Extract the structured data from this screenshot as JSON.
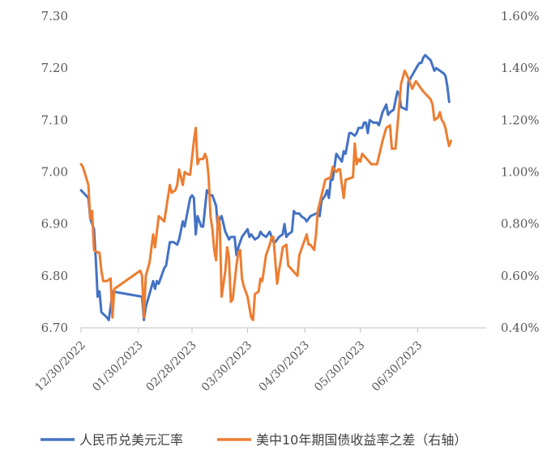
{
  "chart_data": {
    "type": "line",
    "title": "",
    "xlabel": "",
    "ylabel_left": "",
    "ylabel_right": "",
    "x_ticks": [
      "12/30/2022",
      "01/30/2023",
      "02/28/2023",
      "03/30/2023",
      "04/30/2023",
      "05/30/2023",
      "06/30/2023"
    ],
    "x_range": [
      0,
      219
    ],
    "x_tick_positions": [
      0,
      31,
      60,
      90,
      121,
      151,
      182
    ],
    "y_left": {
      "range": [
        6.7,
        7.3
      ],
      "ticks": [
        "6.70",
        "6.80",
        "6.90",
        "7.00",
        "7.10",
        "7.20",
        "7.30"
      ],
      "tick_values": [
        6.7,
        6.8,
        6.9,
        7.0,
        7.1,
        7.2,
        7.3
      ]
    },
    "y_right": {
      "range": [
        0.4,
        1.6
      ],
      "ticks": [
        "0.40%",
        "0.60%",
        "0.80%",
        "1.00%",
        "1.20%",
        "1.40%",
        "1.60%"
      ],
      "tick_values": [
        0.4,
        0.6,
        0.8,
        1.0,
        1.2,
        1.4,
        1.6
      ]
    },
    "legend_position": "bottom",
    "series": [
      {
        "name": "人民币兑美元汇率",
        "axis": "left",
        "color": "#4472C4",
        "points": [
          [
            0,
            6.965
          ],
          [
            4,
            6.95
          ],
          [
            5,
            6.91
          ],
          [
            7,
            6.89
          ],
          [
            8,
            6.83
          ],
          [
            9,
            6.76
          ],
          [
            10,
            6.77
          ],
          [
            11,
            6.73
          ],
          [
            14,
            6.72
          ],
          [
            15,
            6.715
          ],
          [
            16,
            6.74
          ],
          [
            17,
            6.77
          ],
          [
            33,
            6.76
          ],
          [
            34,
            6.715
          ],
          [
            35,
            6.74
          ],
          [
            39,
            6.79
          ],
          [
            40,
            6.775
          ],
          [
            41,
            6.79
          ],
          [
            42,
            6.785
          ],
          [
            45,
            6.815
          ],
          [
            46,
            6.82
          ],
          [
            48,
            6.865
          ],
          [
            50,
            6.865
          ],
          [
            52,
            6.86
          ],
          [
            53,
            6.87
          ],
          [
            55,
            6.905
          ],
          [
            56,
            6.895
          ],
          [
            59,
            6.95
          ],
          [
            60,
            6.955
          ],
          [
            61,
            6.95
          ],
          [
            62,
            6.88
          ],
          [
            63,
            6.915
          ],
          [
            65,
            6.895
          ],
          [
            66,
            6.895
          ],
          [
            68,
            6.965
          ],
          [
            70,
            6.955
          ],
          [
            71,
            6.955
          ],
          [
            73,
            6.935
          ],
          [
            74,
            6.89
          ],
          [
            75,
            6.91
          ],
          [
            76,
            6.915
          ],
          [
            78,
            6.885
          ],
          [
            80,
            6.87
          ],
          [
            81,
            6.875
          ],
          [
            83,
            6.875
          ],
          [
            84,
            6.84
          ],
          [
            85,
            6.855
          ],
          [
            87,
            6.875
          ],
          [
            90,
            6.89
          ],
          [
            91,
            6.875
          ],
          [
            92,
            6.88
          ],
          [
            94,
            6.87
          ],
          [
            96,
            6.875
          ],
          [
            97,
            6.885
          ],
          [
            98,
            6.88
          ],
          [
            100,
            6.875
          ],
          [
            101,
            6.88
          ],
          [
            102,
            6.885
          ],
          [
            104,
            6.865
          ],
          [
            105,
            6.865
          ],
          [
            107,
            6.875
          ],
          [
            109,
            6.88
          ],
          [
            110,
            6.9
          ],
          [
            111,
            6.875
          ],
          [
            112,
            6.88
          ],
          [
            114,
            6.885
          ],
          [
            115,
            6.925
          ],
          [
            116,
            6.92
          ],
          [
            118,
            6.92
          ],
          [
            119,
            6.915
          ],
          [
            121,
            6.91
          ],
          [
            122,
            6.905
          ],
          [
            124,
            6.915
          ],
          [
            127,
            6.92
          ],
          [
            128,
            6.92
          ],
          [
            129,
            6.915
          ],
          [
            130,
            6.945
          ],
          [
            132,
            6.955
          ],
          [
            133,
            6.965
          ],
          [
            134,
            6.95
          ],
          [
            135,
            6.985
          ],
          [
            136,
            6.985
          ],
          [
            138,
            7.035
          ],
          [
            141,
            7.02
          ],
          [
            142,
            7.04
          ],
          [
            143,
            7.035
          ],
          [
            145,
            7.075
          ],
          [
            146,
            7.075
          ],
          [
            148,
            7.07
          ],
          [
            149,
            7.075
          ],
          [
            150,
            7.085
          ],
          [
            151,
            7.085
          ],
          [
            152,
            7.085
          ],
          [
            153,
            7.095
          ],
          [
            154,
            7.095
          ],
          [
            155,
            7.075
          ],
          [
            156,
            7.1
          ],
          [
            158,
            7.095
          ],
          [
            160,
            7.095
          ],
          [
            161,
            7.09
          ],
          [
            163,
            7.115
          ],
          [
            165,
            7.13
          ],
          [
            166,
            7.11
          ],
          [
            167,
            7.115
          ],
          [
            169,
            7.12
          ],
          [
            171,
            7.155
          ],
          [
            172,
            7.15
          ],
          [
            173,
            7.125
          ],
          [
            176,
            7.12
          ],
          [
            177,
            7.175
          ],
          [
            178,
            7.18
          ],
          [
            182,
            7.205
          ],
          [
            183,
            7.21
          ],
          [
            184,
            7.21
          ],
          [
            185,
            7.22
          ],
          [
            186,
            7.225
          ],
          [
            189,
            7.215
          ],
          [
            190,
            7.205
          ],
          [
            191,
            7.195
          ],
          [
            192,
            7.2
          ],
          [
            194,
            7.195
          ],
          [
            196,
            7.19
          ],
          [
            197,
            7.185
          ],
          [
            198,
            7.165
          ],
          [
            199,
            7.135
          ]
        ]
      },
      {
        "name": "美中10年期国债收益率之差（右轴）",
        "axis": "right",
        "color": "#ED7D31",
        "points": [
          [
            0,
            1.03
          ],
          [
            1,
            1.02
          ],
          [
            4,
            0.95
          ],
          [
            5,
            0.82
          ],
          [
            6,
            0.85
          ],
          [
            7,
            0.7
          ],
          [
            9,
            0.69
          ],
          [
            10,
            0.69
          ],
          [
            11,
            0.62
          ],
          [
            12,
            0.58
          ],
          [
            14,
            0.58
          ],
          [
            16,
            0.59
          ],
          [
            17,
            0.44
          ],
          [
            18,
            0.55
          ],
          [
            32,
            0.62
          ],
          [
            33,
            0.6
          ],
          [
            34,
            0.44
          ],
          [
            35,
            0.6
          ],
          [
            37,
            0.65
          ],
          [
            39,
            0.76
          ],
          [
            40,
            0.71
          ],
          [
            42,
            0.83
          ],
          [
            45,
            0.81
          ],
          [
            48,
            0.95
          ],
          [
            49,
            0.92
          ],
          [
            51,
            0.93
          ],
          [
            52,
            0.95
          ],
          [
            53,
            1.01
          ],
          [
            55,
            0.95
          ],
          [
            56,
            1.0
          ],
          [
            58,
            0.99
          ],
          [
            59,
            0.99
          ],
          [
            61,
            1.12
          ],
          [
            62,
            1.17
          ],
          [
            63,
            1.03
          ],
          [
            64,
            1.05
          ],
          [
            66,
            1.05
          ],
          [
            67,
            1.07
          ],
          [
            68,
            1.05
          ],
          [
            69,
            0.98
          ],
          [
            70,
            0.83
          ],
          [
            71,
            0.78
          ],
          [
            72,
            0.7
          ],
          [
            73,
            0.66
          ],
          [
            74,
            0.83
          ],
          [
            75,
            0.8
          ],
          [
            76,
            0.52
          ],
          [
            77,
            0.57
          ],
          [
            78,
            0.62
          ],
          [
            79,
            0.71
          ],
          [
            80,
            0.67
          ],
          [
            81,
            0.5
          ],
          [
            82,
            0.51
          ],
          [
            84,
            0.64
          ],
          [
            85,
            0.69
          ],
          [
            86,
            0.7
          ],
          [
            87,
            0.59
          ],
          [
            88,
            0.56
          ],
          [
            90,
            0.52
          ],
          [
            92,
            0.44
          ],
          [
            93,
            0.43
          ],
          [
            94,
            0.53
          ],
          [
            96,
            0.54
          ],
          [
            97,
            0.59
          ],
          [
            98,
            0.58
          ],
          [
            100,
            0.68
          ],
          [
            102,
            0.72
          ],
          [
            103,
            0.75
          ],
          [
            104,
            0.75
          ],
          [
            106,
            0.57
          ],
          [
            107,
            0.62
          ],
          [
            108,
            0.66
          ],
          [
            109,
            0.71
          ],
          [
            111,
            0.72
          ],
          [
            112,
            0.64
          ],
          [
            117,
            0.6
          ],
          [
            118,
            0.68
          ],
          [
            120,
            0.72
          ],
          [
            122,
            0.76
          ],
          [
            123,
            0.72
          ],
          [
            124,
            0.72
          ],
          [
            126,
            0.7
          ],
          [
            127,
            0.76
          ],
          [
            128,
            0.85
          ],
          [
            131,
            0.94
          ],
          [
            132,
            0.97
          ],
          [
            135,
            0.98
          ],
          [
            136,
            1.02
          ],
          [
            138,
            1.0
          ],
          [
            139,
            1.01
          ],
          [
            140,
            1.01
          ],
          [
            141,
            0.95
          ],
          [
            142,
            0.9
          ],
          [
            143,
            0.97
          ],
          [
            147,
            0.98
          ],
          [
            148,
            1.11
          ],
          [
            149,
            1.03
          ],
          [
            150,
            1.05
          ],
          [
            151,
            1.04
          ],
          [
            152,
            1.07
          ],
          [
            157,
            1.03
          ],
          [
            160,
            1.03
          ],
          [
            163,
            1.12
          ],
          [
            165,
            1.17
          ],
          [
            167,
            1.18
          ],
          [
            168,
            1.09
          ],
          [
            170,
            1.09
          ],
          [
            173,
            1.34
          ],
          [
            175,
            1.39
          ],
          [
            177,
            1.36
          ],
          [
            179,
            1.32
          ],
          [
            181,
            1.35
          ],
          [
            185,
            1.31
          ],
          [
            189,
            1.28
          ],
          [
            190,
            1.26
          ],
          [
            191,
            1.2
          ],
          [
            193,
            1.21
          ],
          [
            194,
            1.23
          ],
          [
            195,
            1.2
          ],
          [
            196,
            1.19
          ],
          [
            197,
            1.17
          ],
          [
            198,
            1.13
          ],
          [
            199,
            1.1
          ],
          [
            200,
            1.12
          ]
        ]
      }
    ]
  }
}
